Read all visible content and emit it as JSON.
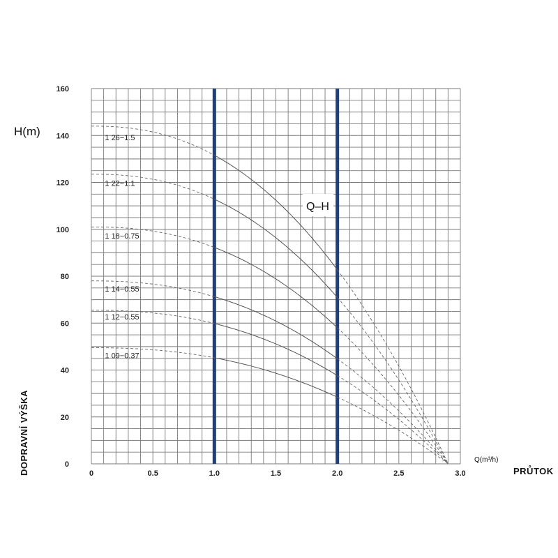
{
  "chart_data": {
    "type": "line",
    "ylabel": "H(m)",
    "xlabel": "Q(m³/h)",
    "side_ylabel": "DOPRAVNÍ VÝŠKA",
    "side_xlabel": "PRŮTOK",
    "annotation": "Q–H",
    "xlim": [
      0,
      3.0
    ],
    "ylim": [
      0,
      160
    ],
    "x_ticks": [
      "0",
      "0.5",
      "1.0",
      "1.5",
      "2.0",
      "2.5",
      "3.0"
    ],
    "y_ticks": [
      "0",
      "20",
      "40",
      "60",
      "80",
      "100",
      "120",
      "140",
      "160"
    ],
    "grid": true,
    "operating_range": [
      1.0,
      2.0
    ],
    "endpoint_q": 2.9,
    "series": [
      {
        "name": "1 26−1.5",
        "shutoff": 144,
        "labelY": 138
      },
      {
        "name": "1 22−1.1",
        "shutoff": 123.5,
        "labelY": 118.5
      },
      {
        "name": "1 18−0.75",
        "shutoff": 101,
        "labelY": 96
      },
      {
        "name": "1 14−0.55",
        "shutoff": 78,
        "labelY": 73.5
      },
      {
        "name": "1 12−0.55",
        "shutoff": 65.5,
        "labelY": 61.5
      },
      {
        "name": "1 09−0.37",
        "shutoff": 49.5,
        "labelY": 45
      }
    ]
  }
}
